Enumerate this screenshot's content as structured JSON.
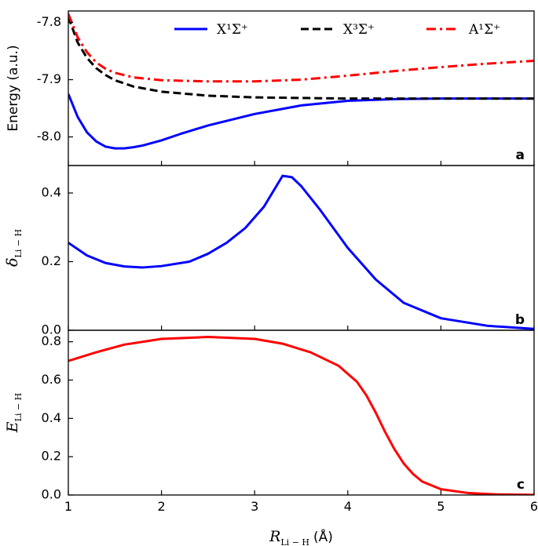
{
  "chart_data": [
    {
      "panel": "a",
      "type": "line",
      "ylabel": "Energy (a.u.)",
      "xlim": [
        1,
        6
      ],
      "ylim": [
        -8.05,
        -7.78
      ],
      "yticks": [
        -7.8,
        -7.9,
        -8.0
      ],
      "ytick_labels": [
        "-7.8",
        "-7.9",
        "-8.0"
      ],
      "legend_placement": "top",
      "series": [
        {
          "name": "X¹Σ⁺",
          "color": "#0000ff",
          "dash": "solid",
          "x": [
            1.0,
            1.1,
            1.2,
            1.3,
            1.4,
            1.5,
            1.6,
            1.7,
            1.8,
            2.0,
            2.2,
            2.5,
            3.0,
            3.5,
            4.0,
            4.5,
            5.0,
            5.5,
            6.0
          ],
          "y": [
            -7.925,
            -7.965,
            -7.992,
            -8.008,
            -8.017,
            -8.02,
            -8.02,
            -8.018,
            -8.015,
            -8.006,
            -7.995,
            -7.98,
            -7.96,
            -7.945,
            -7.937,
            -7.934,
            -7.933,
            -7.933,
            -7.933
          ]
        },
        {
          "name": "X³Σ⁺",
          "color": "#000000",
          "dash": "dashed",
          "x": [
            1.0,
            1.1,
            1.2,
            1.3,
            1.4,
            1.5,
            1.7,
            2.0,
            2.5,
            3.0,
            3.5,
            4.0,
            5.0,
            6.0
          ],
          "y": [
            -7.79,
            -7.835,
            -7.862,
            -7.88,
            -7.892,
            -7.901,
            -7.912,
            -7.921,
            -7.928,
            -7.931,
            -7.932,
            -7.933,
            -7.933,
            -7.933
          ]
        },
        {
          "name": "A¹Σ⁺",
          "color": "#ff0000",
          "dash": "dashdot",
          "x": [
            1.0,
            1.1,
            1.2,
            1.3,
            1.4,
            1.5,
            1.7,
            2.0,
            2.5,
            3.0,
            3.5,
            4.0,
            4.5,
            5.0,
            5.5,
            6.0
          ],
          "y": [
            -7.785,
            -7.826,
            -7.852,
            -7.87,
            -7.881,
            -7.888,
            -7.896,
            -7.901,
            -7.903,
            -7.903,
            -7.9,
            -7.893,
            -7.885,
            -7.878,
            -7.872,
            -7.867
          ]
        }
      ]
    },
    {
      "panel": "b",
      "type": "line",
      "ylabel": "δ",
      "ylabel_sub": "Li − H",
      "xlim": [
        1,
        6
      ],
      "ylim": [
        0.0,
        0.48
      ],
      "yticks": [
        0.0,
        0.2,
        0.4
      ],
      "ytick_labels": [
        "0.0",
        "0.2",
        "0.4"
      ],
      "series": [
        {
          "color": "#0000ff",
          "x": [
            1.0,
            1.2,
            1.4,
            1.6,
            1.8,
            2.0,
            2.3,
            2.5,
            2.7,
            2.9,
            3.1,
            3.3,
            3.4,
            3.5,
            3.7,
            4.0,
            4.3,
            4.6,
            5.0,
            5.5,
            6.0
          ],
          "y": [
            0.255,
            0.218,
            0.196,
            0.186,
            0.183,
            0.187,
            0.2,
            0.223,
            0.255,
            0.298,
            0.36,
            0.45,
            0.446,
            0.42,
            0.352,
            0.24,
            0.148,
            0.08,
            0.035,
            0.013,
            0.004
          ]
        }
      ]
    },
    {
      "panel": "c",
      "type": "line",
      "ylabel": "E",
      "ylabel_sub": "Li − H",
      "xlim": [
        1,
        6
      ],
      "ylim": [
        0.0,
        0.86
      ],
      "yticks": [
        0.0,
        0.2,
        0.4,
        0.6,
        0.8
      ],
      "ytick_labels": [
        "0.0",
        "0.2",
        "0.4",
        "0.6",
        "0.8"
      ],
      "xlabel": "R",
      "xlabel_sub": "Li − H",
      "xlabel_unit": "(Å)",
      "xticks": [
        1,
        2,
        3,
        4,
        5,
        6
      ],
      "xtick_labels": [
        "1",
        "2",
        "3",
        "4",
        "5",
        "6"
      ],
      "series": [
        {
          "color": "#ff0000",
          "x": [
            1.0,
            1.3,
            1.6,
            2.0,
            2.5,
            3.0,
            3.3,
            3.6,
            3.9,
            4.1,
            4.2,
            4.3,
            4.4,
            4.5,
            4.6,
            4.7,
            4.8,
            5.0,
            5.3,
            5.6,
            6.0
          ],
          "y": [
            0.7,
            0.745,
            0.785,
            0.815,
            0.825,
            0.815,
            0.79,
            0.745,
            0.675,
            0.59,
            0.52,
            0.43,
            0.33,
            0.24,
            0.165,
            0.11,
            0.07,
            0.03,
            0.01,
            0.003,
            0.001
          ]
        }
      ]
    }
  ]
}
